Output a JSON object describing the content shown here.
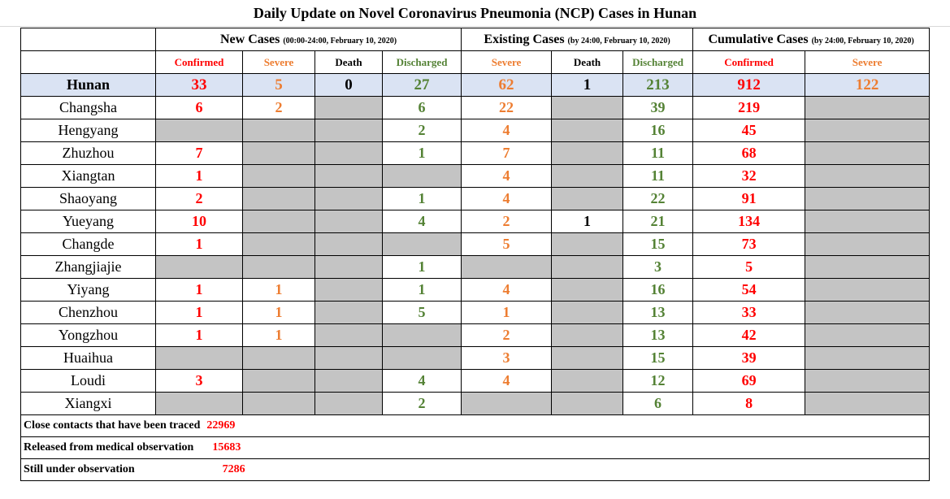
{
  "title": "Daily Update on Novel Coronavirus Pneumonia (NCP) Cases in Hunan",
  "groups": {
    "new_cases": {
      "label": "New Cases",
      "note": "(00:00-24:00, February 10, 2020)"
    },
    "existing_cases": {
      "label": "Existing Cases",
      "note": "(by 24:00, February 10, 2020)"
    },
    "cumulative_cases": {
      "label": "Cumulative Cases",
      "note": "(by 24:00, February 10, 2020)"
    }
  },
  "columns": [
    "Confirmed",
    "Severe",
    "Death",
    "Discharged",
    "Severe",
    "Death",
    "Discharged",
    "Confirmed",
    "Severe"
  ],
  "column_colors": [
    "#ff0000",
    "#ed7d31",
    "#000000",
    "#548235",
    "#ed7d31",
    "#000000",
    "#548235",
    "#ff0000",
    "#ed7d31"
  ],
  "rows": [
    {
      "region": "Hunan",
      "values": [
        "33",
        "5",
        "0",
        "27",
        "62",
        "1",
        "213",
        "912",
        "122"
      ]
    },
    {
      "region": "Changsha",
      "values": [
        "6",
        "2",
        null,
        "6",
        "22",
        null,
        "39",
        "219",
        null
      ]
    },
    {
      "region": "Hengyang",
      "values": [
        null,
        null,
        null,
        "2",
        "4",
        null,
        "16",
        "45",
        null
      ]
    },
    {
      "region": "Zhuzhou",
      "values": [
        "7",
        null,
        null,
        "1",
        "7",
        null,
        "11",
        "68",
        null
      ]
    },
    {
      "region": "Xiangtan",
      "values": [
        "1",
        null,
        null,
        null,
        "4",
        null,
        "11",
        "32",
        null
      ]
    },
    {
      "region": "Shaoyang",
      "values": [
        "2",
        null,
        null,
        "1",
        "4",
        null,
        "22",
        "91",
        null
      ]
    },
    {
      "region": "Yueyang",
      "values": [
        "10",
        null,
        null,
        "4",
        "2",
        "1",
        "21",
        "134",
        null
      ]
    },
    {
      "region": "Changde",
      "values": [
        "1",
        null,
        null,
        null,
        "5",
        null,
        "15",
        "73",
        null
      ]
    },
    {
      "region": "Zhangjiajie",
      "values": [
        null,
        null,
        null,
        "1",
        null,
        null,
        "3",
        "5",
        null
      ]
    },
    {
      "region": "Yiyang",
      "values": [
        "1",
        "1",
        null,
        "1",
        "4",
        null,
        "16",
        "54",
        null
      ]
    },
    {
      "region": "Chenzhou",
      "values": [
        "1",
        "1",
        null,
        "5",
        "1",
        null,
        "13",
        "33",
        null
      ]
    },
    {
      "region": "Yongzhou",
      "values": [
        "1",
        "1",
        null,
        null,
        "2",
        null,
        "13",
        "42",
        null
      ]
    },
    {
      "region": "Huaihua",
      "values": [
        null,
        null,
        null,
        null,
        "3",
        null,
        "15",
        "39",
        null
      ]
    },
    {
      "region": "Loudi",
      "values": [
        "3",
        null,
        null,
        "4",
        "4",
        null,
        "12",
        "69",
        null
      ]
    },
    {
      "region": "Xiangxi",
      "values": [
        null,
        null,
        null,
        "2",
        null,
        null,
        "6",
        "8",
        null
      ]
    }
  ],
  "notes": [
    {
      "label": "Close contacts that have been traced",
      "value": "22969"
    },
    {
      "label": "Released from medical observation",
      "value": "15683"
    },
    {
      "label": "Still under observation",
      "value": "7286"
    }
  ]
}
